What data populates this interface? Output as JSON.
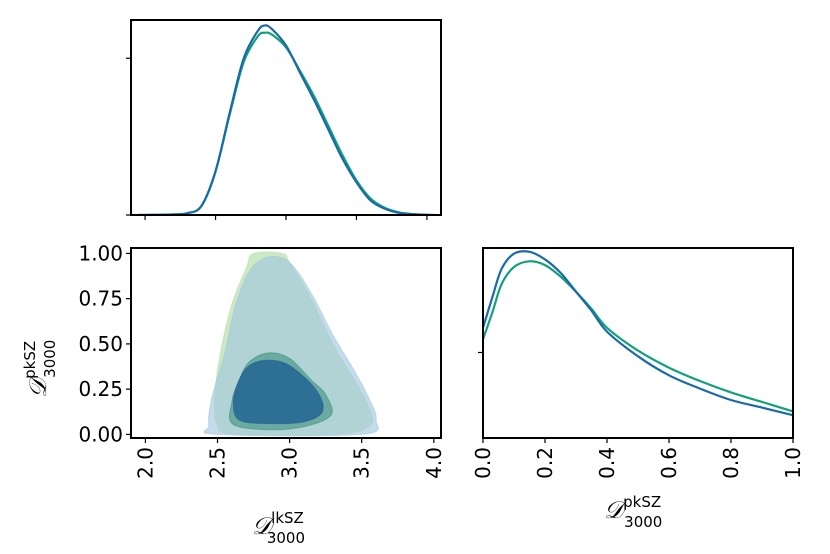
{
  "chart_data": [
    {
      "panel": "top-left",
      "type": "line",
      "title": "",
      "xlabel": "",
      "ylabel": "",
      "xlim": [
        1.9,
        4.1
      ],
      "ylim": [
        0,
        1.07
      ],
      "yticks": [
        0.0,
        0.86
      ],
      "xticks": [
        2.0,
        2.5,
        3.0,
        3.5,
        4.0
      ],
      "series": [
        {
          "name": "green",
          "color": "#13a17c",
          "x": [
            1.95,
            2.2,
            2.3,
            2.4,
            2.5,
            2.6,
            2.7,
            2.8,
            2.85,
            2.9,
            3.0,
            3.1,
            3.2,
            3.3,
            3.4,
            3.5,
            3.6,
            3.7,
            3.8,
            3.9,
            4.0,
            4.05
          ],
          "y": [
            0.0,
            0.003,
            0.01,
            0.05,
            0.24,
            0.55,
            0.84,
            0.98,
            1.0,
            0.99,
            0.92,
            0.79,
            0.65,
            0.49,
            0.33,
            0.19,
            0.09,
            0.04,
            0.015,
            0.005,
            0.001,
            0.0
          ]
        },
        {
          "name": "blue",
          "color": "#1a6aa8",
          "x": [
            1.95,
            2.2,
            2.3,
            2.4,
            2.5,
            2.6,
            2.7,
            2.8,
            2.85,
            2.9,
            3.0,
            3.1,
            3.2,
            3.3,
            3.4,
            3.5,
            3.6,
            3.7,
            3.8,
            3.9,
            4.0,
            4.05
          ],
          "y": [
            0.0,
            0.003,
            0.01,
            0.05,
            0.24,
            0.56,
            0.86,
            1.01,
            1.04,
            1.02,
            0.93,
            0.78,
            0.63,
            0.47,
            0.31,
            0.18,
            0.08,
            0.035,
            0.012,
            0.004,
            0.001,
            0.0
          ]
        }
      ]
    },
    {
      "panel": "bottom-left",
      "type": "contour",
      "title": "",
      "xlabel": "D_3000^lkSZ",
      "ylabel": "D_3000^pkSZ",
      "xlim": [
        1.9,
        4.05
      ],
      "ylim": [
        -0.02,
        1.03
      ],
      "xticks": [
        "2.0",
        "2.5",
        "3.0",
        "3.5",
        "4.0"
      ],
      "yticks": [
        "0.00",
        "0.25",
        "0.50",
        "0.75",
        "1.00"
      ],
      "series": [
        {
          "name": "green-95",
          "color": "#b5e0a8",
          "opacity": 0.7,
          "points": [
            [
              2.62,
              0.0
            ],
            [
              3.32,
              0.0
            ],
            [
              3.56,
              0.05
            ],
            [
              3.55,
              0.15
            ],
            [
              3.45,
              0.3
            ],
            [
              3.3,
              0.5
            ],
            [
              3.15,
              0.75
            ],
            [
              3.0,
              0.95
            ],
            [
              2.95,
              1.0
            ],
            [
              2.75,
              1.0
            ],
            [
              2.7,
              0.92
            ],
            [
              2.6,
              0.72
            ],
            [
              2.52,
              0.45
            ],
            [
              2.48,
              0.2
            ],
            [
              2.5,
              0.05
            ]
          ]
        },
        {
          "name": "blue-95",
          "color": "#a3c8df",
          "opacity": 0.65,
          "points": [
            [
              2.5,
              0.0
            ],
            [
              3.5,
              0.0
            ],
            [
              3.6,
              0.08
            ],
            [
              3.55,
              0.2
            ],
            [
              3.45,
              0.35
            ],
            [
              3.3,
              0.55
            ],
            [
              3.15,
              0.78
            ],
            [
              3.0,
              0.95
            ],
            [
              2.85,
              0.98
            ],
            [
              2.72,
              0.9
            ],
            [
              2.62,
              0.7
            ],
            [
              2.55,
              0.45
            ],
            [
              2.46,
              0.2
            ],
            [
              2.44,
              0.05
            ]
          ]
        },
        {
          "name": "green-68",
          "color": "#3c8f7d",
          "opacity": 0.6,
          "points": [
            [
              2.62,
              0.05
            ],
            [
              3.0,
              0.03
            ],
            [
              3.28,
              0.1
            ],
            [
              3.25,
              0.22
            ],
            [
              3.15,
              0.3
            ],
            [
              3.0,
              0.42
            ],
            [
              2.85,
              0.45
            ],
            [
              2.72,
              0.4
            ],
            [
              2.65,
              0.3
            ],
            [
              2.6,
              0.18
            ]
          ]
        },
        {
          "name": "blue-68",
          "color": "#1d5f94",
          "opacity": 0.78,
          "points": [
            [
              2.65,
              0.08
            ],
            [
              2.85,
              0.06
            ],
            [
              3.1,
              0.07
            ],
            [
              3.23,
              0.13
            ],
            [
              3.18,
              0.25
            ],
            [
              3.0,
              0.38
            ],
            [
              2.85,
              0.41
            ],
            [
              2.72,
              0.38
            ],
            [
              2.65,
              0.3
            ],
            [
              2.61,
              0.18
            ]
          ]
        }
      ]
    },
    {
      "panel": "bottom-right",
      "type": "line",
      "title": "",
      "xlabel": "D_3000^pkSZ",
      "ylabel": "",
      "xlim": [
        0.0,
        1.0
      ],
      "ylim": [
        0,
        1.0
      ],
      "xticks": [
        "0.0",
        "0.2",
        "0.4",
        "0.6",
        "0.8",
        "1.0"
      ],
      "series": [
        {
          "name": "green",
          "color": "#13a17c",
          "x": [
            0.0,
            0.03,
            0.06,
            0.1,
            0.15,
            0.2,
            0.25,
            0.3,
            0.35,
            0.4,
            0.5,
            0.6,
            0.7,
            0.8,
            0.9,
            1.0
          ],
          "y": [
            0.52,
            0.66,
            0.81,
            0.9,
            0.93,
            0.91,
            0.85,
            0.77,
            0.68,
            0.58,
            0.46,
            0.37,
            0.3,
            0.24,
            0.19,
            0.14
          ]
        },
        {
          "name": "blue",
          "color": "#1a6aa8",
          "x": [
            0.0,
            0.03,
            0.06,
            0.1,
            0.15,
            0.2,
            0.25,
            0.3,
            0.35,
            0.4,
            0.5,
            0.6,
            0.7,
            0.8,
            0.9,
            1.0
          ],
          "y": [
            0.58,
            0.74,
            0.89,
            0.97,
            0.98,
            0.94,
            0.87,
            0.77,
            0.67,
            0.56,
            0.43,
            0.33,
            0.26,
            0.2,
            0.16,
            0.12
          ]
        }
      ]
    }
  ],
  "labels": {
    "lk_main": "𝒟",
    "lk_sup": "lkSZ",
    "lk_sub": "3000",
    "pk_main": "𝒟",
    "pk_sup": "pkSZ",
    "pk_sub": "3000"
  }
}
